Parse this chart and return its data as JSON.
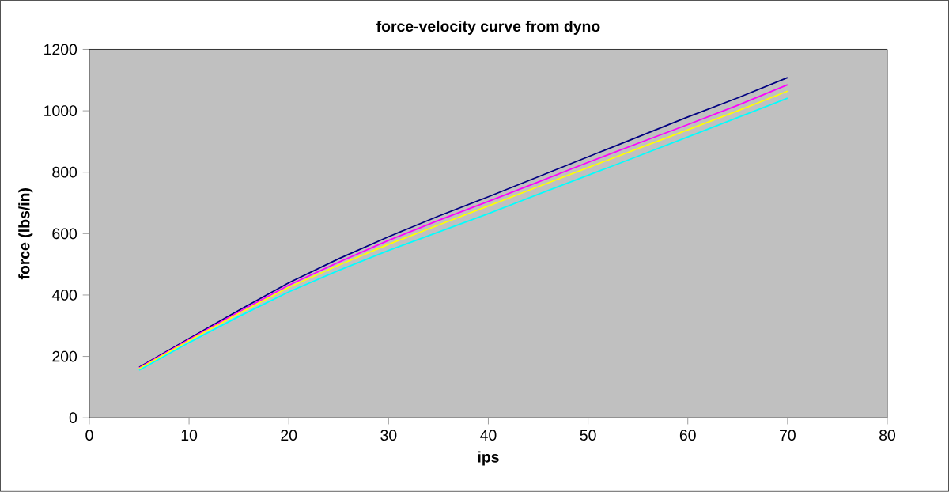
{
  "chart_data": {
    "type": "line",
    "title": "force-velocity curve from dyno",
    "xlabel": "ips",
    "ylabel": "force (lbs/in)",
    "xlim": [
      0,
      80
    ],
    "xticks": [
      0,
      10,
      20,
      30,
      40,
      50,
      60,
      70,
      80
    ],
    "ylim": [
      0,
      1200
    ],
    "yticks": [
      0,
      200,
      400,
      600,
      800,
      1000,
      1200
    ],
    "marker": "none",
    "line_style": "solid",
    "x": [
      5,
      10,
      15,
      20,
      25,
      30,
      35,
      40,
      45,
      50,
      55,
      60,
      65,
      70
    ],
    "series": [
      {
        "color": "#000080",
        "values": [
          165,
          258,
          350,
          440,
          518,
          590,
          657,
          720,
          785,
          850,
          915,
          980,
          1042,
          1108
        ]
      },
      {
        "color": "#ff00ff",
        "values": [
          163,
          255,
          345,
          432,
          507,
          578,
          643,
          705,
          768,
          832,
          894,
          955,
          1018,
          1085
        ]
      },
      {
        "color": "#ffff00",
        "values": [
          160,
          252,
          340,
          425,
          497,
          565,
          628,
          690,
          753,
          815,
          877,
          938,
          1000,
          1064
        ]
      },
      {
        "color": "#00ffff",
        "values": [
          155,
          245,
          330,
          410,
          480,
          545,
          605,
          665,
          728,
          790,
          852,
          915,
          978,
          1041
        ]
      }
    ]
  }
}
